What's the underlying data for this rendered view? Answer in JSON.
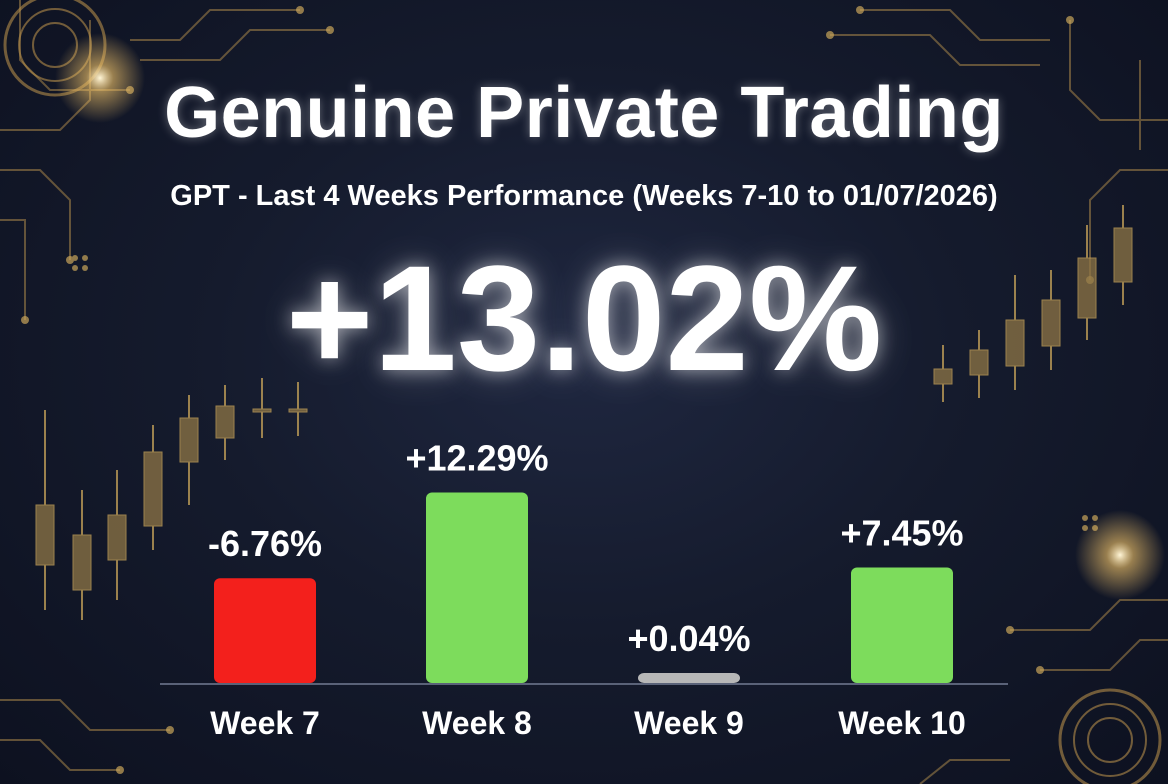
{
  "header": {
    "title": "Genuine Private Trading",
    "subtitle": "GPT - Last 4 Weeks Performance (Weeks 7-10 to 01/07/2026)",
    "total_return": "+13.02%"
  },
  "colors": {
    "positive": "#7ddc5c",
    "negative": "#f3201c",
    "neutral": "#b7b7b7",
    "gold": "#c9a55a",
    "background": "#151b2d"
  },
  "chart_data": {
    "type": "bar",
    "categories": [
      "Week 7",
      "Week 8",
      "Week 9",
      "Week 10"
    ],
    "values": [
      -6.76,
      12.29,
      0.04,
      7.45
    ],
    "value_labels": [
      "-6.76%",
      "+12.29%",
      "+0.04%",
      "+7.45%"
    ],
    "bar_colors": [
      "#f3201c",
      "#7ddc5c",
      "#b7b7b7",
      "#7ddc5c"
    ],
    "title": "",
    "xlabel": "",
    "ylabel": "",
    "grid": false,
    "legend": "none"
  }
}
